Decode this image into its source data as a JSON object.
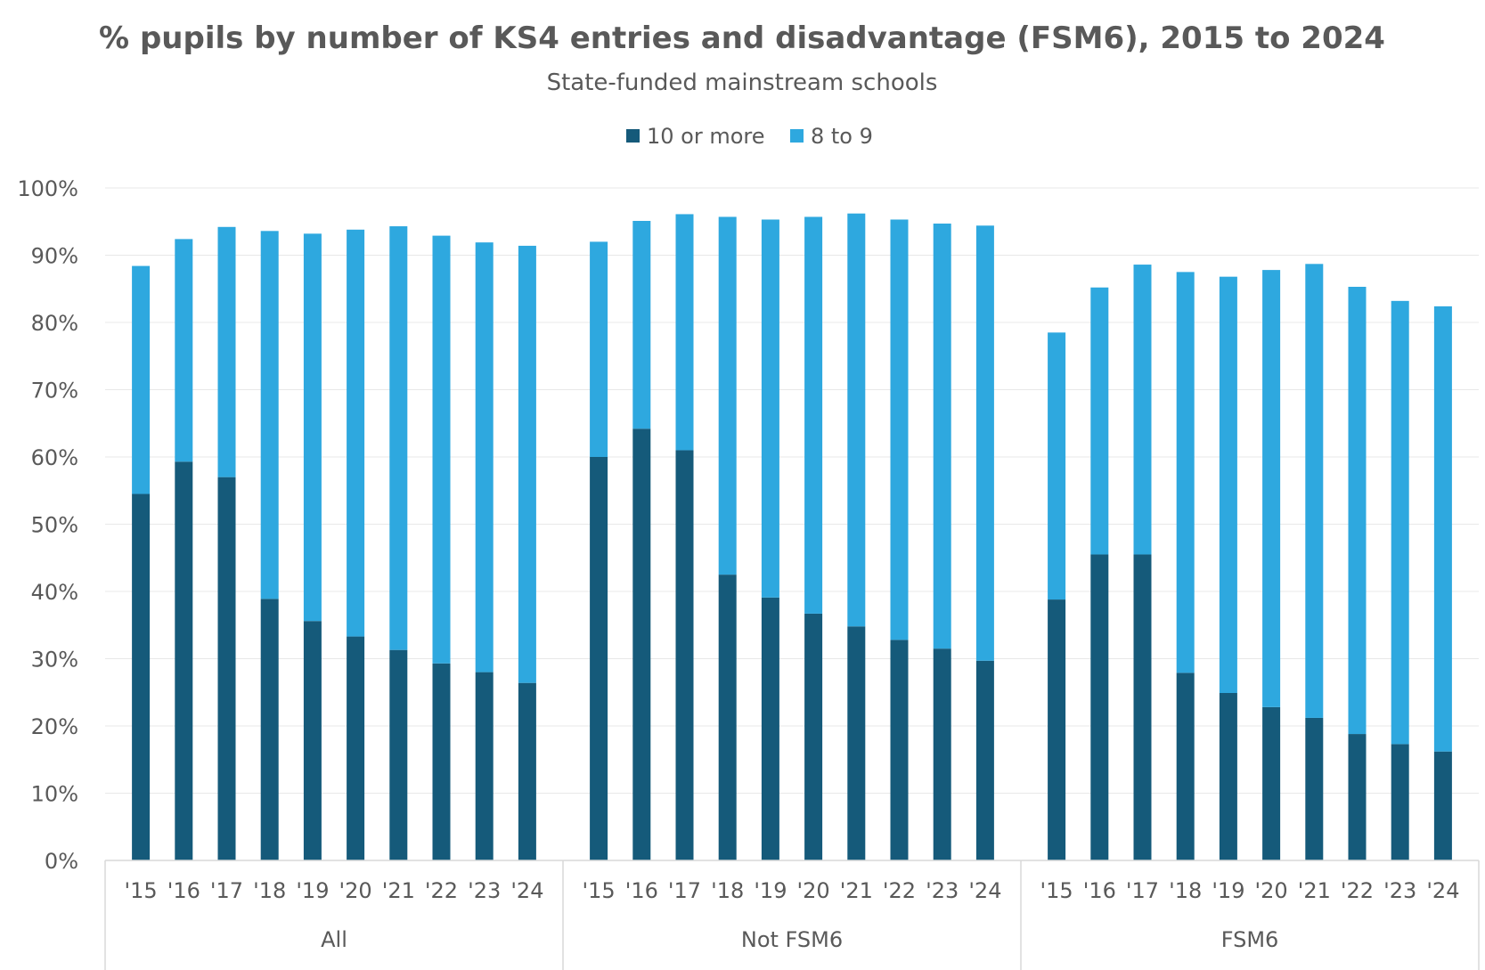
{
  "chart_data": {
    "type": "bar",
    "stacked": true,
    "title": "% pupils by number of KS4 entries and disadvantage (FSM6), 2015 to 2024",
    "subtitle": "State-funded mainstream schools",
    "legend_position": "top-center",
    "grid": true,
    "ylim": [
      0,
      100
    ],
    "yticks": [
      "0%",
      "10%",
      "20%",
      "30%",
      "40%",
      "50%",
      "60%",
      "70%",
      "80%",
      "90%",
      "100%"
    ],
    "categories": [
      "'15",
      "'16",
      "'17",
      "'18",
      "'19",
      "'20",
      "'21",
      "'22",
      "'23",
      "'24"
    ],
    "groups": [
      "All",
      "Not FSM6",
      "FSM6"
    ],
    "colors": {
      "10 or more": "#155a7a",
      "8 to 9": "#2ea8df"
    },
    "series": [
      {
        "name": "10 or more",
        "values": [
          [
            54.5,
            59.3,
            57.0,
            38.9,
            35.6,
            33.3,
            31.3,
            29.3,
            28.0,
            26.4
          ],
          [
            60.0,
            64.2,
            61.0,
            42.5,
            39.1,
            36.7,
            34.8,
            32.8,
            31.5,
            29.7
          ],
          [
            38.8,
            45.5,
            45.5,
            27.9,
            24.9,
            22.8,
            21.2,
            18.8,
            17.3,
            16.2
          ]
        ]
      },
      {
        "name": "8 to 9",
        "values": [
          [
            33.9,
            33.1,
            37.2,
            54.7,
            57.6,
            60.5,
            63.0,
            63.6,
            63.9,
            65.0
          ],
          [
            32.0,
            30.9,
            35.1,
            53.2,
            56.2,
            59.0,
            61.4,
            62.5,
            63.2,
            64.7
          ],
          [
            39.7,
            39.7,
            43.1,
            59.6,
            61.9,
            65.0,
            67.5,
            66.5,
            65.9,
            66.2
          ]
        ]
      }
    ]
  }
}
